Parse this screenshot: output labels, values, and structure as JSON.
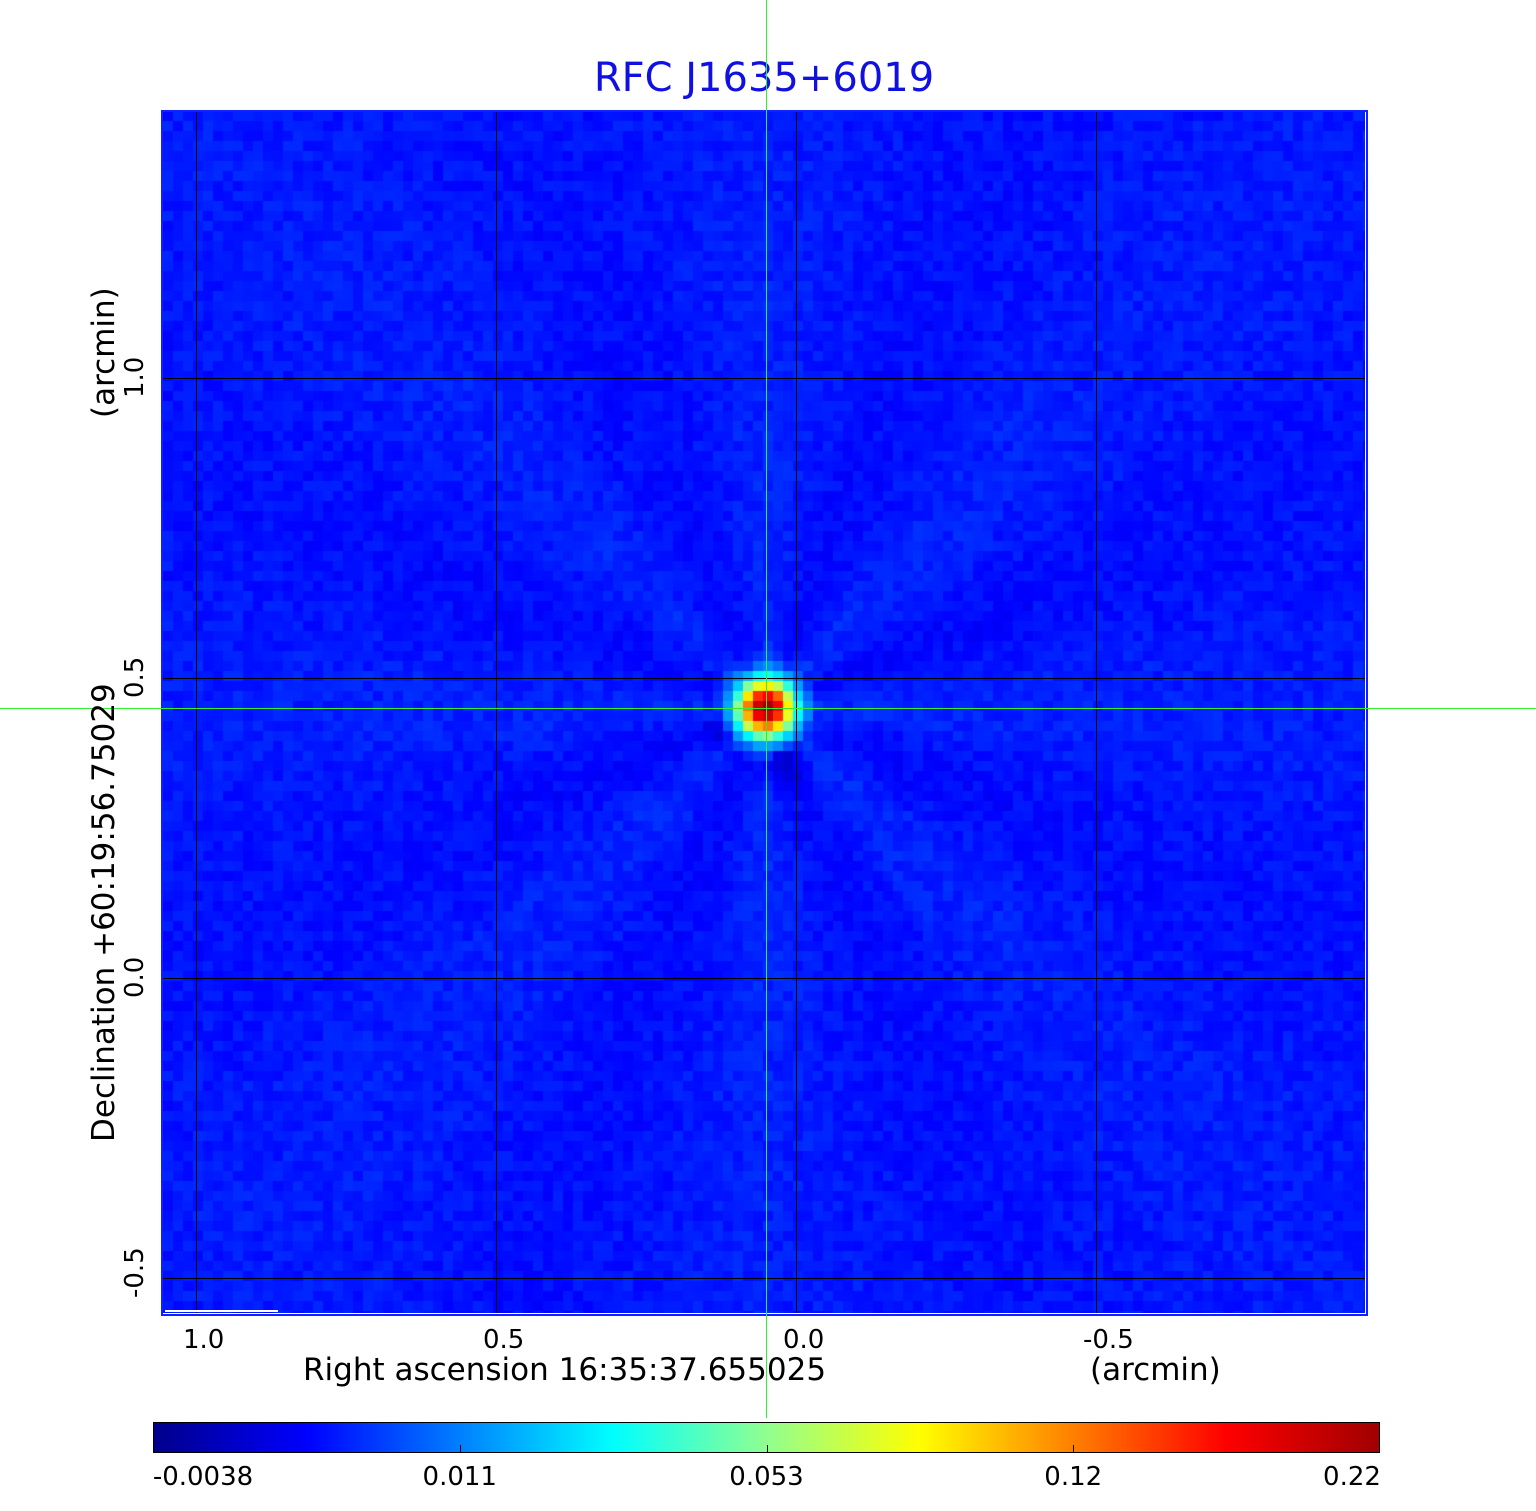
{
  "chart_data": {
    "type": "heatmap",
    "title": "RFC J1635+6019",
    "xlabel": "Right ascension  16:35:37.655025",
    "xunit": "(arcmin)",
    "ylabel": "Declination  +60:19:56.75029",
    "yunit": "(arcmin)",
    "xticks": [
      1.0,
      0.5,
      0.0,
      -0.5
    ],
    "xtick_labels": [
      "1.0",
      "0.5",
      "0.0",
      "-0.5"
    ],
    "yticks": [
      1.0,
      0.5,
      0.0,
      -0.5
    ],
    "ytick_labels": [
      "1.0",
      "0.5",
      "0.0",
      "-0.5"
    ],
    "grid": true,
    "colormap": "jet",
    "colorbar": {
      "placement": "bottom",
      "ticks": [
        "-0.0038",
        "0.011",
        "0.053",
        "0.12",
        "0.22"
      ],
      "range": [
        -0.0038,
        0.22
      ]
    },
    "peak": {
      "x": 0.05,
      "y": 0.45,
      "value": 0.22
    },
    "crosshair": {
      "x": 0.05,
      "y": 0.45
    },
    "colors": {
      "title": "#1010e0",
      "frame": "#1020ff",
      "crosshair": "#33ee33",
      "grid": "#000000"
    }
  }
}
